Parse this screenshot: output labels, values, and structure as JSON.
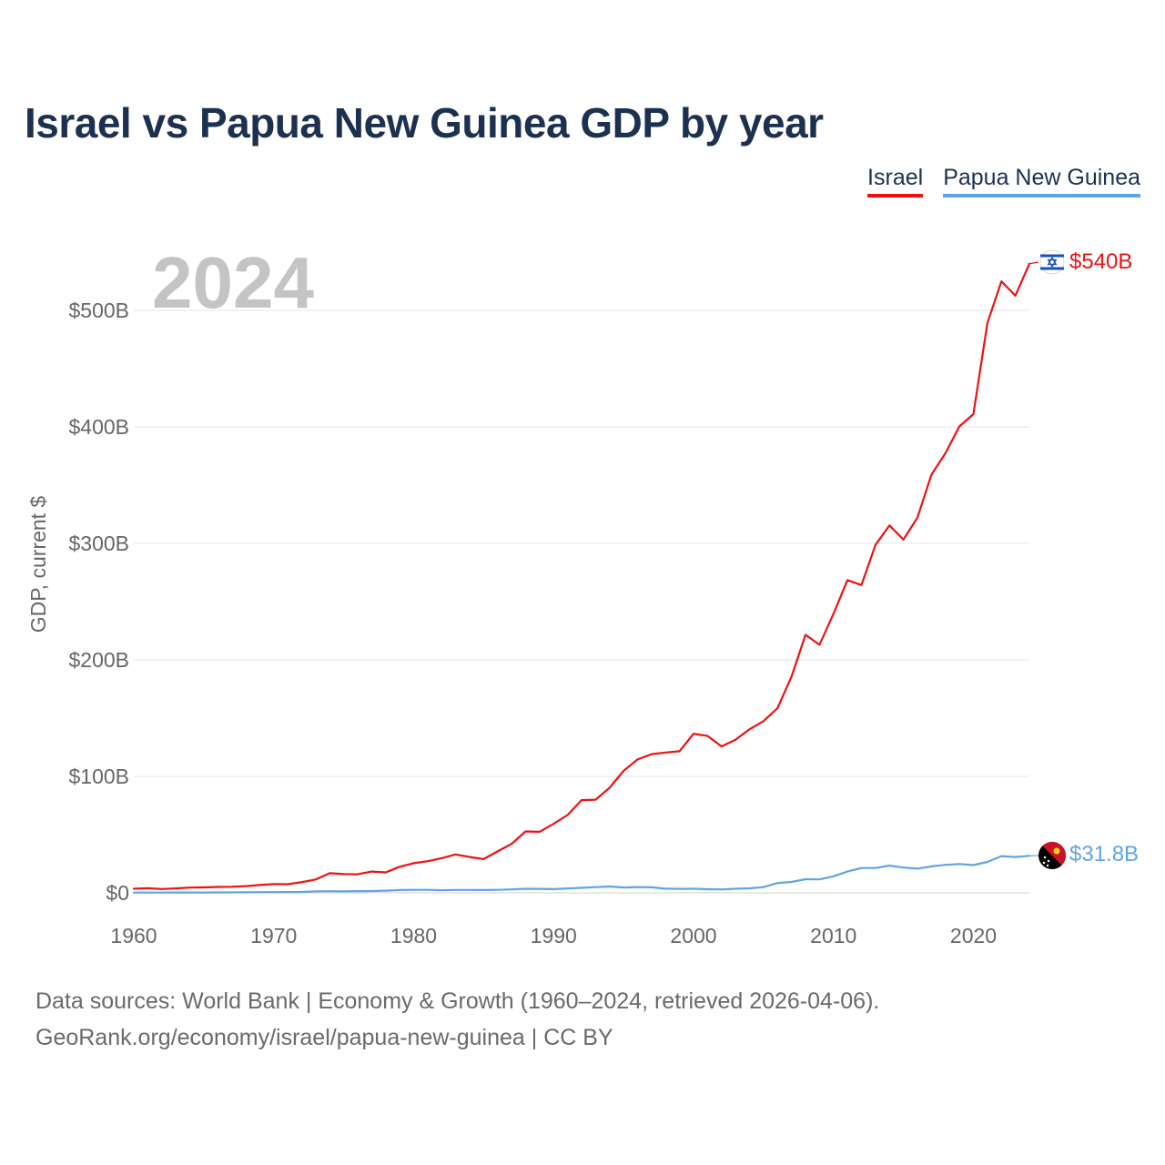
{
  "title": "Israel vs Papua New Guinea GDP by year",
  "year_label": "2024",
  "legend": [
    {
      "name": "Israel",
      "color": "#ee1111"
    },
    {
      "name": "Papua New Guinea",
      "color": "#5fa4e6"
    }
  ],
  "footer": {
    "line1": "Data sources: World Bank | Economy & Growth (1960–2024, retrieved 2026-04-06).",
    "line2": "GeoRank.org/economy/israel/papua-new-guinea | CC BY"
  },
  "chart_data": {
    "type": "line",
    "title": "Israel vs Papua New Guinea GDP by year",
    "xlabel": "",
    "ylabel": "GDP, current $",
    "xlim": [
      1960,
      2024
    ],
    "ylim": [
      0,
      500
    ],
    "x_ticks": [
      1960,
      1970,
      1980,
      1990,
      2000,
      2010,
      2020
    ],
    "x_tick_labels": [
      "1960",
      "1970",
      "1980",
      "1990",
      "2000",
      "2010",
      "2020"
    ],
    "y_ticks": [
      0,
      100,
      200,
      300,
      400,
      500
    ],
    "y_tick_labels": [
      "$0",
      "$100B",
      "$200B",
      "$300B",
      "$400B",
      "$500B"
    ],
    "grid": true,
    "units": "billions of current US$",
    "x": [
      1960,
      1961,
      1962,
      1963,
      1964,
      1965,
      1966,
      1967,
      1968,
      1969,
      1970,
      1971,
      1972,
      1973,
      1974,
      1975,
      1976,
      1977,
      1978,
      1979,
      1980,
      1981,
      1982,
      1983,
      1984,
      1985,
      1986,
      1987,
      1988,
      1989,
      1990,
      1991,
      1992,
      1993,
      1994,
      1995,
      1996,
      1997,
      1998,
      1999,
      2000,
      2001,
      2002,
      2003,
      2004,
      2005,
      2006,
      2007,
      2008,
      2009,
      2010,
      2011,
      2012,
      2013,
      2014,
      2015,
      2016,
      2017,
      2018,
      2019,
      2020,
      2021,
      2022,
      2023,
      2024
    ],
    "series": [
      {
        "name": "Israel",
        "color": "#ee1111",
        "end_label": "$540B",
        "values": [
          3.5,
          4.0,
          3.3,
          3.8,
          4.5,
          4.7,
          5.1,
          5.2,
          5.8,
          6.7,
          7.6,
          7.4,
          9.2,
          11.5,
          16.9,
          16.1,
          15.9,
          18.3,
          17.6,
          22.4,
          25.5,
          27.2,
          29.8,
          33.0,
          30.8,
          29.0,
          35.6,
          42.0,
          52.7,
          52.4,
          59.3,
          66.8,
          79.6,
          80.0,
          90.2,
          104.7,
          114.5,
          119.1,
          120.5,
          121.6,
          136.6,
          134.7,
          125.7,
          131.5,
          140.4,
          147.4,
          158.6,
          185.5,
          221.5,
          213.0,
          239.6,
          268.4,
          264.2,
          298.7,
          315.4,
          303.2,
          322.1,
          359.0,
          377.4,
          400.4,
          410.9,
          489.2,
          524.9,
          512.6,
          540.0
        ]
      },
      {
        "name": "Papua New Guinea",
        "color": "#5fa4e6",
        "end_label": "$31.8B",
        "values": [
          0.2,
          0.2,
          0.2,
          0.3,
          0.3,
          0.3,
          0.4,
          0.4,
          0.5,
          0.6,
          0.6,
          0.7,
          0.8,
          1.3,
          1.4,
          1.3,
          1.5,
          1.6,
          1.9,
          2.4,
          2.6,
          2.6,
          2.3,
          2.5,
          2.5,
          2.4,
          2.6,
          3.0,
          3.5,
          3.4,
          3.2,
          3.8,
          4.3,
          4.9,
          5.5,
          4.6,
          5.0,
          4.8,
          3.6,
          3.4,
          3.5,
          3.1,
          3.0,
          3.5,
          3.9,
          4.9,
          8.4,
          9.4,
          11.7,
          11.6,
          14.2,
          18.3,
          21.3,
          21.3,
          23.4,
          21.7,
          20.8,
          22.7,
          24.1,
          24.8,
          23.8,
          26.6,
          31.6,
          30.8,
          31.8
        ]
      }
    ]
  }
}
